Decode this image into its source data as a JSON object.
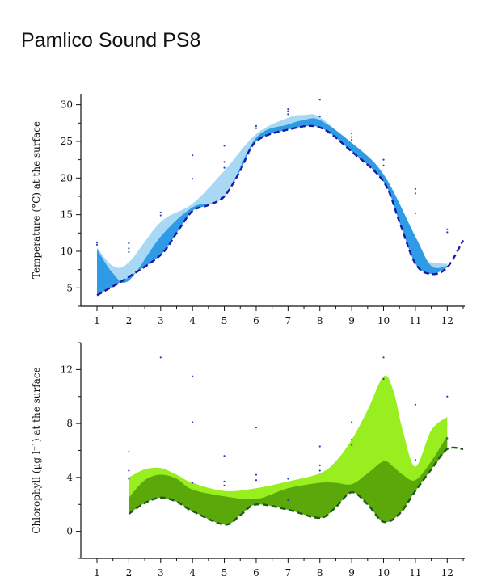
{
  "title": "Pamlico Sound PS8",
  "chart_data": [
    {
      "type": "area",
      "ylabel": "Temperature (°C) at the surface",
      "xlim": [
        0.85,
        12.5
      ],
      "ylim": [
        2.5,
        31.5
      ],
      "x_ticks": [
        1,
        2,
        3,
        4,
        5,
        6,
        7,
        8,
        9,
        10,
        11,
        12
      ],
      "y_ticks": [
        5,
        10,
        15,
        20,
        25,
        30
      ],
      "colors": {
        "upper": "#a9d8f5",
        "lower": "#2f9be6",
        "line": "#1a1aa0",
        "points": "#2a3fc0"
      },
      "x": [
        1,
        1.5,
        2,
        3,
        4,
        5,
        6,
        7,
        7.5,
        8,
        9,
        10,
        11,
        11.5,
        12
      ],
      "upper_band": [
        10.5,
        8,
        8.5,
        14,
        16.5,
        21,
        26,
        28.2,
        28.6,
        28.3,
        24.5,
        20,
        9.5,
        8.5,
        8.3
      ],
      "lower_band": [
        10.3,
        7,
        6,
        12,
        16,
        17.5,
        25.5,
        27.3,
        27.9,
        27.9,
        24.8,
        20.5,
        12,
        8,
        8
      ],
      "line": [
        {
          "x": 1,
          "y": 4
        },
        {
          "x": 2,
          "y": 6.5
        },
        {
          "x": 3,
          "y": 9.5
        },
        {
          "x": 3.5,
          "y": 12.5
        },
        {
          "x": 4,
          "y": 15.5
        },
        {
          "x": 4.5,
          "y": 16.3
        },
        {
          "x": 5,
          "y": 17.5
        },
        {
          "x": 5.5,
          "y": 21
        },
        {
          "x": 6,
          "y": 25
        },
        {
          "x": 7,
          "y": 26.6
        },
        {
          "x": 8,
          "y": 26.9
        },
        {
          "x": 9,
          "y": 23.6
        },
        {
          "x": 10,
          "y": 19.5
        },
        {
          "x": 10.5,
          "y": 14
        },
        {
          "x": 11,
          "y": 8.3
        },
        {
          "x": 11.5,
          "y": 6.9
        },
        {
          "x": 12,
          "y": 7.8
        },
        {
          "x": 12.5,
          "y": 11.5
        }
      ],
      "points": [
        {
          "x": 1,
          "y": 11.2
        },
        {
          "x": 1,
          "y": 10.9
        },
        {
          "x": 2,
          "y": 11.1
        },
        {
          "x": 2,
          "y": 10.4
        },
        {
          "x": 2,
          "y": 9.9
        },
        {
          "x": 3,
          "y": 15.3
        },
        {
          "x": 3,
          "y": 14.9
        },
        {
          "x": 4,
          "y": 23.1
        },
        {
          "x": 4,
          "y": 19.9
        },
        {
          "x": 5,
          "y": 24.4
        },
        {
          "x": 5,
          "y": 22.2
        },
        {
          "x": 5,
          "y": 21.4
        },
        {
          "x": 6,
          "y": 27.1
        },
        {
          "x": 6,
          "y": 26.8
        },
        {
          "x": 7,
          "y": 29.4
        },
        {
          "x": 7,
          "y": 29.1
        },
        {
          "x": 7,
          "y": 28.7
        },
        {
          "x": 8,
          "y": 30.7
        },
        {
          "x": 8,
          "y": 28.4
        },
        {
          "x": 9,
          "y": 26.1
        },
        {
          "x": 9,
          "y": 25.6
        },
        {
          "x": 9,
          "y": 25.2
        },
        {
          "x": 10,
          "y": 22.5
        },
        {
          "x": 10,
          "y": 21.7
        },
        {
          "x": 11,
          "y": 18.5
        },
        {
          "x": 11,
          "y": 17.9
        },
        {
          "x": 11,
          "y": 15.2
        },
        {
          "x": 12,
          "y": 13.0
        },
        {
          "x": 12,
          "y": 12.6
        }
      ]
    },
    {
      "type": "area",
      "ylabel": "Chlorophyll (µg l⁻¹) at the surface",
      "xlim": [
        0.85,
        12.5
      ],
      "ylim": [
        -2,
        14
      ],
      "x_ticks": [
        1,
        2,
        3,
        4,
        5,
        6,
        7,
        8,
        9,
        10,
        11,
        12
      ],
      "y_ticks": [
        0,
        4,
        8,
        12
      ],
      "colors": {
        "upper": "#99ee1f",
        "lower": "#5ba80a",
        "line": "#1f5a1f",
        "points": "#2a3fc0"
      },
      "x": [
        2,
        2.5,
        3,
        3.5,
        4,
        5,
        6,
        7,
        8,
        8.5,
        9,
        9.5,
        10,
        10.3,
        10.6,
        11,
        11.5,
        12
      ],
      "upper_band": [
        4,
        4.6,
        4.7,
        4.2,
        3.6,
        3,
        3.2,
        3.7,
        4.3,
        5.2,
        6.8,
        9,
        11.5,
        10.5,
        7.5,
        4.8,
        7.5,
        8.5
      ],
      "lower_band": [
        2.5,
        3.8,
        4.2,
        3.9,
        3.1,
        2.6,
        2.4,
        3.2,
        3.6,
        3.6,
        3.5,
        4.3,
        5.2,
        4.8,
        4.2,
        3.8,
        5.2,
        7.1
      ],
      "line": [
        {
          "x": 2,
          "y": 1.3
        },
        {
          "x": 2.5,
          "y": 2.1
        },
        {
          "x": 3,
          "y": 2.5
        },
        {
          "x": 3.5,
          "y": 2.2
        },
        {
          "x": 4,
          "y": 1.5
        },
        {
          "x": 5,
          "y": 0.5
        },
        {
          "x": 5.5,
          "y": 1.2
        },
        {
          "x": 6,
          "y": 2.0
        },
        {
          "x": 7,
          "y": 1.6
        },
        {
          "x": 8,
          "y": 1.0
        },
        {
          "x": 8.5,
          "y": 1.8
        },
        {
          "x": 9,
          "y": 2.9
        },
        {
          "x": 9.5,
          "y": 2.0
        },
        {
          "x": 10,
          "y": 0.7
        },
        {
          "x": 10.5,
          "y": 1.3
        },
        {
          "x": 11,
          "y": 3.0
        },
        {
          "x": 11.5,
          "y": 4.6
        },
        {
          "x": 12,
          "y": 6.1
        },
        {
          "x": 12.5,
          "y": 6.1
        }
      ],
      "points": [
        {
          "x": 2,
          "y": 5.9
        },
        {
          "x": 2,
          "y": 4.5
        },
        {
          "x": 2,
          "y": 3.9
        },
        {
          "x": 3,
          "y": 12.9
        },
        {
          "x": 4,
          "y": 11.5
        },
        {
          "x": 4,
          "y": 8.1
        },
        {
          "x": 4,
          "y": 3.6
        },
        {
          "x": 5,
          "y": 5.6
        },
        {
          "x": 5,
          "y": 3.7
        },
        {
          "x": 5,
          "y": 3.4
        },
        {
          "x": 6,
          "y": 7.7
        },
        {
          "x": 6,
          "y": 4.2
        },
        {
          "x": 6,
          "y": 3.8
        },
        {
          "x": 7,
          "y": 3.9
        },
        {
          "x": 7,
          "y": 2.3
        },
        {
          "x": 8,
          "y": 6.3
        },
        {
          "x": 8,
          "y": 4.9
        },
        {
          "x": 8,
          "y": 4.5
        },
        {
          "x": 9,
          "y": 8.1
        },
        {
          "x": 9,
          "y": 6.8
        },
        {
          "x": 9,
          "y": 6.4
        },
        {
          "x": 10,
          "y": 12.9
        },
        {
          "x": 10,
          "y": 11.3
        },
        {
          "x": 11,
          "y": 9.4
        },
        {
          "x": 11,
          "y": 5.3
        },
        {
          "x": 12,
          "y": 10.0
        },
        {
          "x": 12,
          "y": 6.9
        }
      ]
    }
  ]
}
